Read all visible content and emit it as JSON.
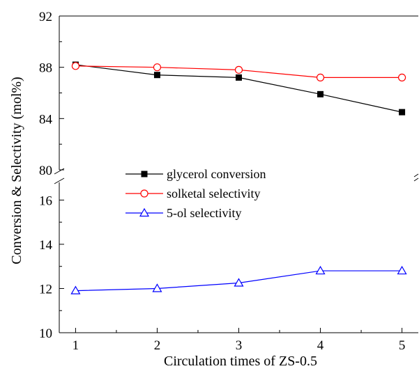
{
  "chart_data": {
    "type": "line",
    "title": "",
    "xlabel": "Circulation times of ZS-0.5",
    "ylabel": "Conversion & Selectivity (mol%)",
    "x": [
      1,
      2,
      3,
      4,
      5
    ],
    "xlim": [
      0.8,
      5.2
    ],
    "x_ticks": [
      "1",
      "2",
      "3",
      "4",
      "5"
    ],
    "y_axis_break": true,
    "ylim_upper": [
      80,
      92
    ],
    "ylim_lower": [
      10,
      16.8
    ],
    "y_ticks_upper": [
      "80",
      "84",
      "88",
      "92"
    ],
    "y_ticks_lower": [
      "10",
      "12",
      "14",
      "16"
    ],
    "grid": false,
    "legend_position": "center-left",
    "series": [
      {
        "name": "glycerol conversion",
        "values": [
          88.2,
          87.4,
          87.2,
          85.9,
          84.5
        ],
        "color": "#000000",
        "marker": "filled-square"
      },
      {
        "name": "solketal selectivity",
        "values": [
          88.1,
          88.0,
          87.8,
          87.2,
          87.2
        ],
        "color": "#ff0000",
        "marker": "open-circle"
      },
      {
        "name": "5-ol selectivity",
        "values": [
          11.9,
          12.0,
          12.25,
          12.8,
          12.8
        ],
        "color": "#0000ff",
        "marker": "open-triangle"
      }
    ]
  }
}
